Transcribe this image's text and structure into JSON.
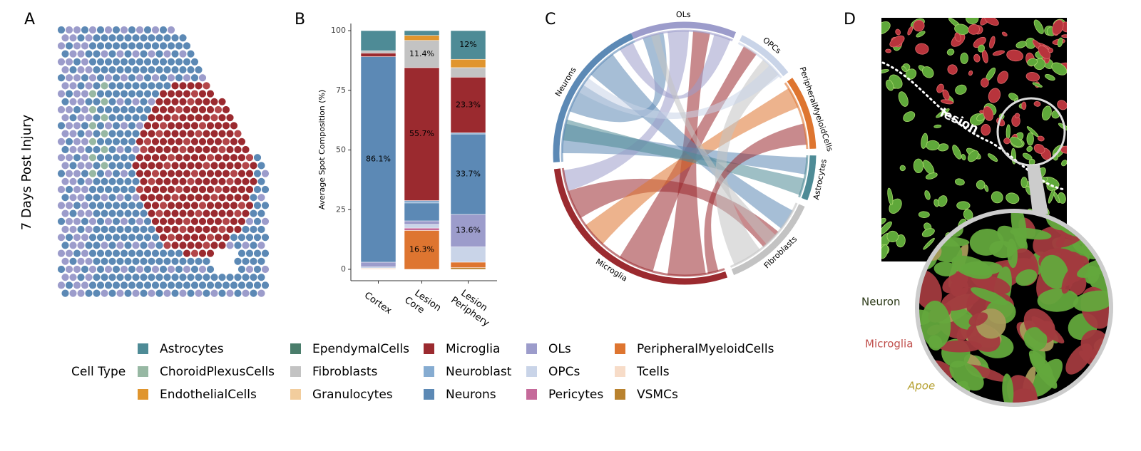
{
  "panels": {
    "a": {
      "letter": "A",
      "label": "7 Days Post Injury"
    },
    "b": {
      "letter": "B"
    },
    "c": {
      "letter": "C",
      "groups": [
        {
          "name": "OLs",
          "color": "#9c9ccb"
        },
        {
          "name": "OPCs",
          "color": "#c9d4e8"
        },
        {
          "name": "PeripheralMyeloidCells",
          "color": "#de7530"
        },
        {
          "name": "Astrocytes",
          "color": "#4e8b96"
        },
        {
          "name": "Fibroblasts",
          "color": "#c3c3c3"
        },
        {
          "name": "Microglia",
          "color": "#9b2a2f"
        },
        {
          "name": "Neurons",
          "color": "#5c89b5"
        }
      ]
    },
    "d": {
      "letter": "D",
      "annotation": "lesion",
      "labels": {
        "neuron": "Neuron",
        "microglia": "Microglia",
        "apoe": "Apoe"
      }
    }
  },
  "chart_data": {
    "type": "stacked-bar",
    "ylabel": "Average Spot Composition (%)",
    "categories": [
      "Cortex",
      "Lesion\nCore",
      "Lesion\nPeriphery"
    ],
    "ylim": [
      0,
      103
    ],
    "yticks": [
      0,
      25,
      50,
      75,
      100
    ],
    "legend": {
      "title": "Cell Type"
    },
    "series": [
      {
        "name": "Astrocytes",
        "color": "#4e8b96",
        "values": [
          8.4,
          2,
          12
        ],
        "value_labels": [
          null,
          null,
          "12%"
        ]
      },
      {
        "name": "ChoroidPlexusCells",
        "color": "#97b8a3",
        "values": [
          null,
          null,
          null
        ]
      },
      {
        "name": "EndothelialCells",
        "color": "#e0952e",
        "values": [
          null,
          2.1,
          3.5
        ]
      },
      {
        "name": "EpendymalCells",
        "color": "#4a7d6b",
        "values": [
          null,
          null,
          null
        ]
      },
      {
        "name": "Fibroblasts",
        "color": "#c3c3c3",
        "values": [
          1,
          11.4,
          4
        ],
        "value_labels": [
          null,
          "11.4%",
          null
        ]
      },
      {
        "name": "Granulocytes",
        "color": "#f2cd9d",
        "values": [
          null,
          null,
          null
        ]
      },
      {
        "name": "Microglia",
        "color": "#9b2a2f",
        "values": [
          1.5,
          55.7,
          23.3
        ],
        "value_labels": [
          null,
          "55.7%",
          "23.3%"
        ]
      },
      {
        "name": "Neuroblast",
        "color": "#86acd1",
        "values": [
          null,
          1,
          0.5
        ]
      },
      {
        "name": "Neurons",
        "color": "#5c89b5",
        "values": [
          86.1,
          7.5,
          33.7
        ],
        "value_labels": [
          "86.1%",
          null,
          "33.7%"
        ]
      },
      {
        "name": "OLs",
        "color": "#9c9ccb",
        "values": [
          2,
          1.5,
          13.6
        ],
        "value_labels": [
          null,
          null,
          "13.6%"
        ]
      },
      {
        "name": "OPCs",
        "color": "#c9d4e8",
        "values": [
          0.5,
          1.5,
          6.4
        ]
      },
      {
        "name": "Pericytes",
        "color": "#c56a9a",
        "values": [
          null,
          1,
          null
        ]
      },
      {
        "name": "PeripheralMyeloidCells",
        "color": "#de7530",
        "values": [
          null,
          16.3,
          2.3
        ],
        "value_labels": [
          null,
          "16.3%",
          null
        ]
      },
      {
        "name": "Tcells",
        "color": "#f7dcc8",
        "values": [
          0.5,
          null,
          null
        ]
      },
      {
        "name": "VSMCs",
        "color": "#b9822e",
        "values": [
          null,
          null,
          0.7
        ]
      }
    ]
  }
}
